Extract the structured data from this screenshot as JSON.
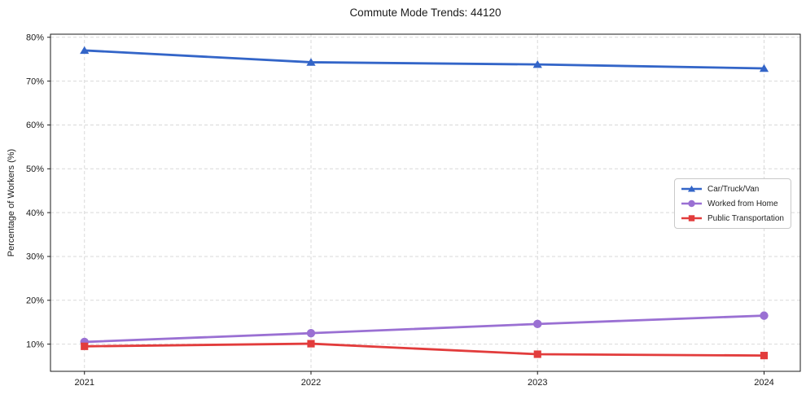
{
  "chart_data": {
    "type": "line",
    "title": "Commute Mode Trends: 44120",
    "xlabel": "",
    "ylabel": "Percentage of Workers (%)",
    "x": [
      2021,
      2022,
      2023,
      2024
    ],
    "x_tick_labels": [
      "2021",
      "2022",
      "2023",
      "2024"
    ],
    "y_ticks": [
      10,
      20,
      30,
      40,
      50,
      60,
      70,
      80
    ],
    "y_tick_suffix": "%",
    "xlim": [
      2020.85,
      2024.16
    ],
    "ylim": [
      3.8,
      80.7
    ],
    "grid": true,
    "legend_position": "center-right",
    "series": [
      {
        "name": "Car/Truck/Van",
        "color": "#3365c8",
        "marker": "triangle",
        "values": [
          77.0,
          74.3,
          73.8,
          72.9
        ]
      },
      {
        "name": "Worked from Home",
        "color": "#9a70d3",
        "marker": "circle",
        "values": [
          10.5,
          12.5,
          14.6,
          16.5
        ]
      },
      {
        "name": "Public Transportation",
        "color": "#e23c3c",
        "marker": "square",
        "values": [
          9.5,
          10.1,
          7.7,
          7.4
        ]
      }
    ],
    "colors": {
      "grid": "#d9d9d9",
      "axis": "#1a1a1a",
      "text": "#1a1a1a",
      "background": "#ffffff"
    }
  }
}
